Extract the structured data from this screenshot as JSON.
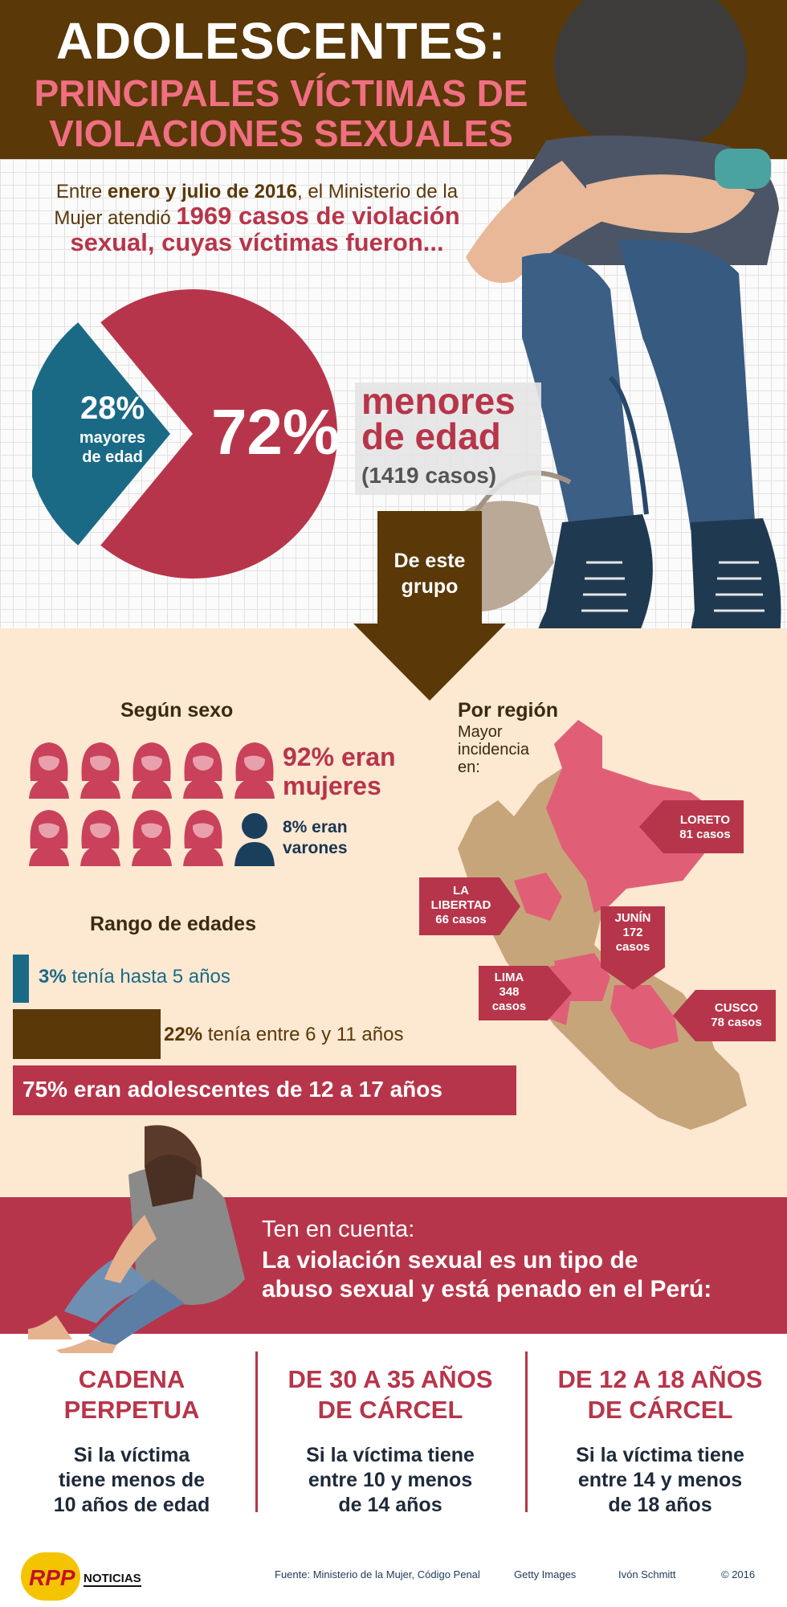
{
  "header": {
    "title": "ADOLESCENTES:",
    "subtitle_line1": "PRINCIPALES VÍCTIMAS DE",
    "subtitle_line2": "VIOLACIONES SEXUALES"
  },
  "intro": {
    "p1": "Entre ",
    "p2": "enero y julio de 2016",
    "p3": ", el Ministerio de la Mujer atendió ",
    "p4": "1969 casos de violación sexual, cuyas víctimas fueron..."
  },
  "pie": {
    "adult_pct": "28%",
    "adult_label1": "mayores",
    "adult_label2": "de edad",
    "minor_pct": "72%",
    "minor_label1": "menores",
    "minor_label2": "de edad",
    "minor_cases": "(1419 casos)",
    "adult_value": 28,
    "minor_value": 72,
    "minor_color": "#b7354a",
    "adult_color": "#1a6a86"
  },
  "arrow": {
    "line1": "De este",
    "line2": "grupo"
  },
  "sexo": {
    "title": "Según sexo",
    "women_text1": "92% eran",
    "women_text2": "mujeres",
    "men_text1": "8% eran",
    "men_text2": "varones",
    "women_icons": 9,
    "men_icons": 1
  },
  "edades": {
    "title": "Rango de edades",
    "r1_pct": "3%",
    "r1_text": " tenía hasta 5 años",
    "r2_pct": "22%",
    "r2_text": " tenía entre 6 y 11 años",
    "r3_text": "75% eran adolescentes de 12 a 17 años",
    "r1_value": 3,
    "r2_value": 22,
    "r3_value": 75
  },
  "region": {
    "title": "Por región",
    "sub1": "Mayor",
    "sub2": "incidencia",
    "sub3": "en:",
    "loreto1": "LORETO",
    "loreto2": "81 casos",
    "libertad1": "LA",
    "libertad2": "LIBERTAD",
    "libertad3": "66 casos",
    "junin1": "JUNÍN",
    "junin2": "172",
    "junin3": "casos",
    "lima1": "LIMA",
    "lima2": "348",
    "lima3": "casos",
    "cusco1": "CUSCO",
    "cusco2": "78 casos"
  },
  "ten": {
    "line1": "Ten en cuenta:",
    "line2": "La violación sexual es un tipo de",
    "line3": "abuso sexual y está penado en el Perú:"
  },
  "penas": [
    {
      "t1": "CADENA",
      "t2": "PERPETUA",
      "d1": "Si la víctima",
      "d2": "tiene menos de",
      "d3": "10 años de edad"
    },
    {
      "t1": "DE 30 A 35 AÑOS",
      "t2": "DE CÁRCEL",
      "d1": "Si la víctima tiene",
      "d2": "entre 10 y menos",
      "d3": "de 14 años"
    },
    {
      "t1": "DE 12 A 18 AÑOS",
      "t2": "DE CÁRCEL",
      "d1": "Si la víctima tiene",
      "d2": "entre 14 y menos",
      "d3": "de 18 años"
    }
  ],
  "footer": {
    "logo": "RPP",
    "logo_sub": "NOTICIAS",
    "fuente": "Fuente: Ministerio de la Mujer, Código Penal",
    "getty": "Getty Images",
    "author": "Ivón Schmitt",
    "copy": "© 2016"
  }
}
